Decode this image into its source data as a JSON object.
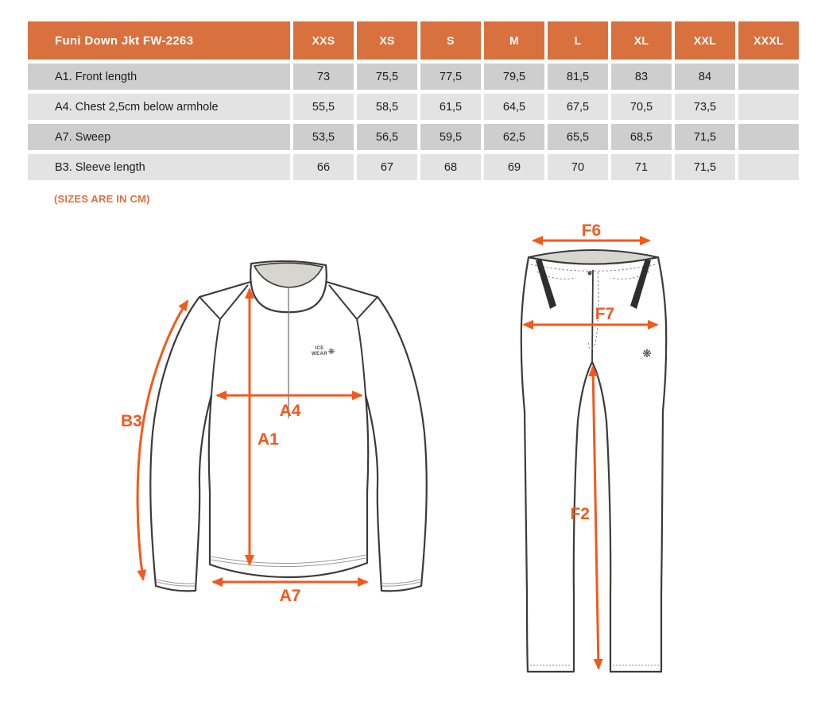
{
  "colors": {
    "header_bg": "#d9713f",
    "header_text": "#ffffff",
    "row_dark": "#cecece",
    "row_light": "#e3e3e3",
    "arrow_orange": "#f4581d",
    "note_orange": "#e0713f",
    "outline_dark": "#3b3b3b",
    "inner_gray_fill": "#d8d5d0"
  },
  "table": {
    "title": "Funi Down Jkt FW-2263",
    "columns": [
      "XXS",
      "XS",
      "S",
      "M",
      "L",
      "XL",
      "XXL",
      "XXXL"
    ],
    "rows": [
      {
        "label": "A1. Front length",
        "values": [
          "73",
          "75,5",
          "77,5",
          "79,5",
          "81,5",
          "83",
          "84",
          ""
        ]
      },
      {
        "label": "A4. Chest 2,5cm below armhole",
        "values": [
          "55,5",
          "58,5",
          "61,5",
          "64,5",
          "67,5",
          "70,5",
          "73,5",
          ""
        ]
      },
      {
        "label": "A7. Sweep",
        "values": [
          "53,5",
          "56,5",
          "59,5",
          "62,5",
          "65,5",
          "68,5",
          "71,5",
          ""
        ]
      },
      {
        "label": "B3. Sleeve length",
        "values": [
          "66",
          "67",
          "68",
          "69",
          "70",
          "71",
          "71,5",
          ""
        ]
      }
    ]
  },
  "note": "(SIZES ARE IN CM)",
  "jacket": {
    "label_b3": "B3",
    "label_a1": "A1",
    "label_a4": "A4",
    "label_a7": "A7",
    "brand_line1": "ICE",
    "brand_line2": "WEAR",
    "brand_icon": "❋"
  },
  "pants": {
    "label_f6": "F6",
    "label_f7": "F7",
    "label_f2": "F2",
    "logo_icon": "❋"
  }
}
